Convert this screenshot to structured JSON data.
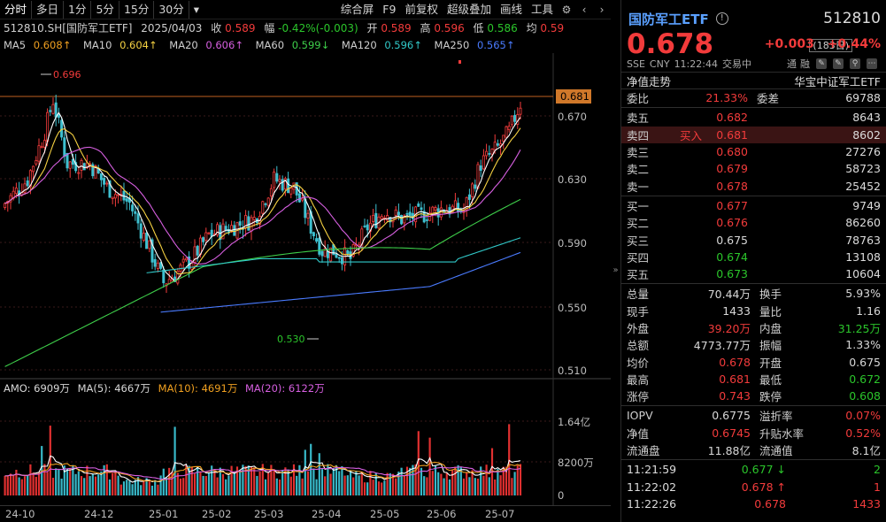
{
  "toolbar": {
    "left": [
      "分时",
      "多日",
      "1分",
      "5分",
      "15分",
      "30分"
    ],
    "dropdown_icon": "caret-down",
    "right": [
      "综合屏",
      "F9",
      "前复权",
      "超级叠加",
      "画线",
      "工具"
    ]
  },
  "info1": {
    "symbol": "512810.SH[国防军工ETF]",
    "date": "2025/04/03",
    "close_label": "收",
    "close": "0.589",
    "range_label": "幅",
    "range": "-0.42%(-0.003)",
    "open_label": "开",
    "open": "0.589",
    "high_label": "高",
    "high": "0.596",
    "low_label": "低",
    "low": "0.586",
    "avg_label": "均",
    "avg": "0.59"
  },
  "ma": [
    {
      "label": "MA5",
      "value": "0.608↑",
      "color": "#ffffff"
    },
    {
      "label": "MA10",
      "value": "0.604↑",
      "color": "#f5d142"
    },
    {
      "label": "MA20",
      "value": "0.606↑",
      "color": "#d65fe0"
    },
    {
      "label": "MA60",
      "value": "0.599↓",
      "color": "#3ecf4a"
    },
    {
      "label": "MA120",
      "value": "0.596↑",
      "color": "#31c9c9"
    },
    {
      "label": "MA250",
      "value": "0.565↑",
      "color": "#4a7bff"
    }
  ],
  "days": "(183日)",
  "price_axis": [
    "0.670",
    "0.630",
    "0.590",
    "0.550",
    "0.510"
  ],
  "current_line": "0.681",
  "annotations": {
    "high": "0.696",
    "low": "0.530"
  },
  "amo": {
    "label": "AMO: 6909万",
    "ma5": "MA(5): 4667万",
    "ma10": "MA(10): 4691万",
    "ma20": "MA(20): 6122万"
  },
  "vol_axis": [
    "1.64亿",
    "8200万",
    "0"
  ],
  "x_axis": [
    "24-10",
    "24-12",
    "25-01",
    "25-02",
    "25-03",
    "25-04",
    "25-05",
    "25-06",
    "25-07"
  ],
  "panel": {
    "name": "国防军工ETF",
    "info_icon": "!",
    "code": "512810",
    "price": "0.678",
    "change": "+0.003",
    "change_pct": "+0.44%",
    "sub": [
      "SSE",
      "CNY",
      "11:22:44",
      "交易中"
    ],
    "sub_right": [
      "通",
      "融"
    ],
    "nav_label": "净值走势",
    "nav_index": "华宝中证军工ETF",
    "weibi_label": "委比",
    "weibi": "21.33%",
    "weicha_label": "委差",
    "weicha": "69788",
    "asks": [
      {
        "label": "卖五",
        "price": "0.682",
        "vol": "8643"
      },
      {
        "label": "卖四",
        "price": "0.681",
        "vol": "8602",
        "tag": "买入"
      },
      {
        "label": "卖三",
        "price": "0.680",
        "vol": "27276"
      },
      {
        "label": "卖二",
        "price": "0.679",
        "vol": "58723"
      },
      {
        "label": "卖一",
        "price": "0.678",
        "vol": "25452"
      }
    ],
    "bids": [
      {
        "label": "买一",
        "price": "0.677",
        "vol": "9749",
        "cls": "up"
      },
      {
        "label": "买二",
        "price": "0.676",
        "vol": "86260",
        "cls": "up"
      },
      {
        "label": "买三",
        "price": "0.675",
        "vol": "78763",
        "cls": "wht"
      },
      {
        "label": "买四",
        "price": "0.674",
        "vol": "13108",
        "cls": "down"
      },
      {
        "label": "买五",
        "price": "0.673",
        "vol": "10604",
        "cls": "down"
      }
    ],
    "stats": [
      {
        "a": "总量",
        "b": "70.44万",
        "bc": "wht",
        "c": "换手",
        "d": "5.93%",
        "dc": "wht"
      },
      {
        "a": "现手",
        "b": "1433",
        "bc": "wht",
        "c": "量比",
        "d": "1.16",
        "dc": "wht"
      },
      {
        "a": "外盘",
        "b": "39.20万",
        "bc": "up",
        "c": "内盘",
        "d": "31.25万",
        "dc": "down"
      },
      {
        "a": "总额",
        "b": "4773.77万",
        "bc": "wht",
        "c": "振幅",
        "d": "1.33%",
        "dc": "wht"
      },
      {
        "a": "均价",
        "b": "0.678",
        "bc": "up",
        "c": "开盘",
        "d": "0.675",
        "dc": "wht"
      },
      {
        "a": "最高",
        "b": "0.681",
        "bc": "up",
        "c": "最低",
        "d": "0.672",
        "dc": "down"
      },
      {
        "a": "涨停",
        "b": "0.743",
        "bc": "up",
        "c": "跌停",
        "d": "0.608",
        "dc": "down"
      }
    ],
    "stats2": [
      {
        "a": "IOPV",
        "b": "0.6775",
        "bc": "wht",
        "c": "溢折率",
        "d": "0.07%",
        "dc": "up"
      },
      {
        "a": "净值",
        "b": "0.6745",
        "bc": "up",
        "c": "升贴水率",
        "d": "0.52%",
        "dc": "up"
      },
      {
        "a": "流通盘",
        "b": "11.88亿",
        "bc": "wht",
        "c": "流通值",
        "d": "8.1亿",
        "dc": "wht"
      }
    ],
    "ticks": [
      {
        "t": "11:21:59",
        "p": "0.677",
        "arrow": "↓",
        "pc": "down",
        "q": "2",
        "qc": "down"
      },
      {
        "t": "11:22:02",
        "p": "0.678",
        "arrow": "↑",
        "pc": "up",
        "q": "1",
        "qc": "up"
      },
      {
        "t": "11:22:26",
        "p": "0.678",
        "arrow": "",
        "pc": "up",
        "q": "1433",
        "qc": "up"
      }
    ]
  }
}
